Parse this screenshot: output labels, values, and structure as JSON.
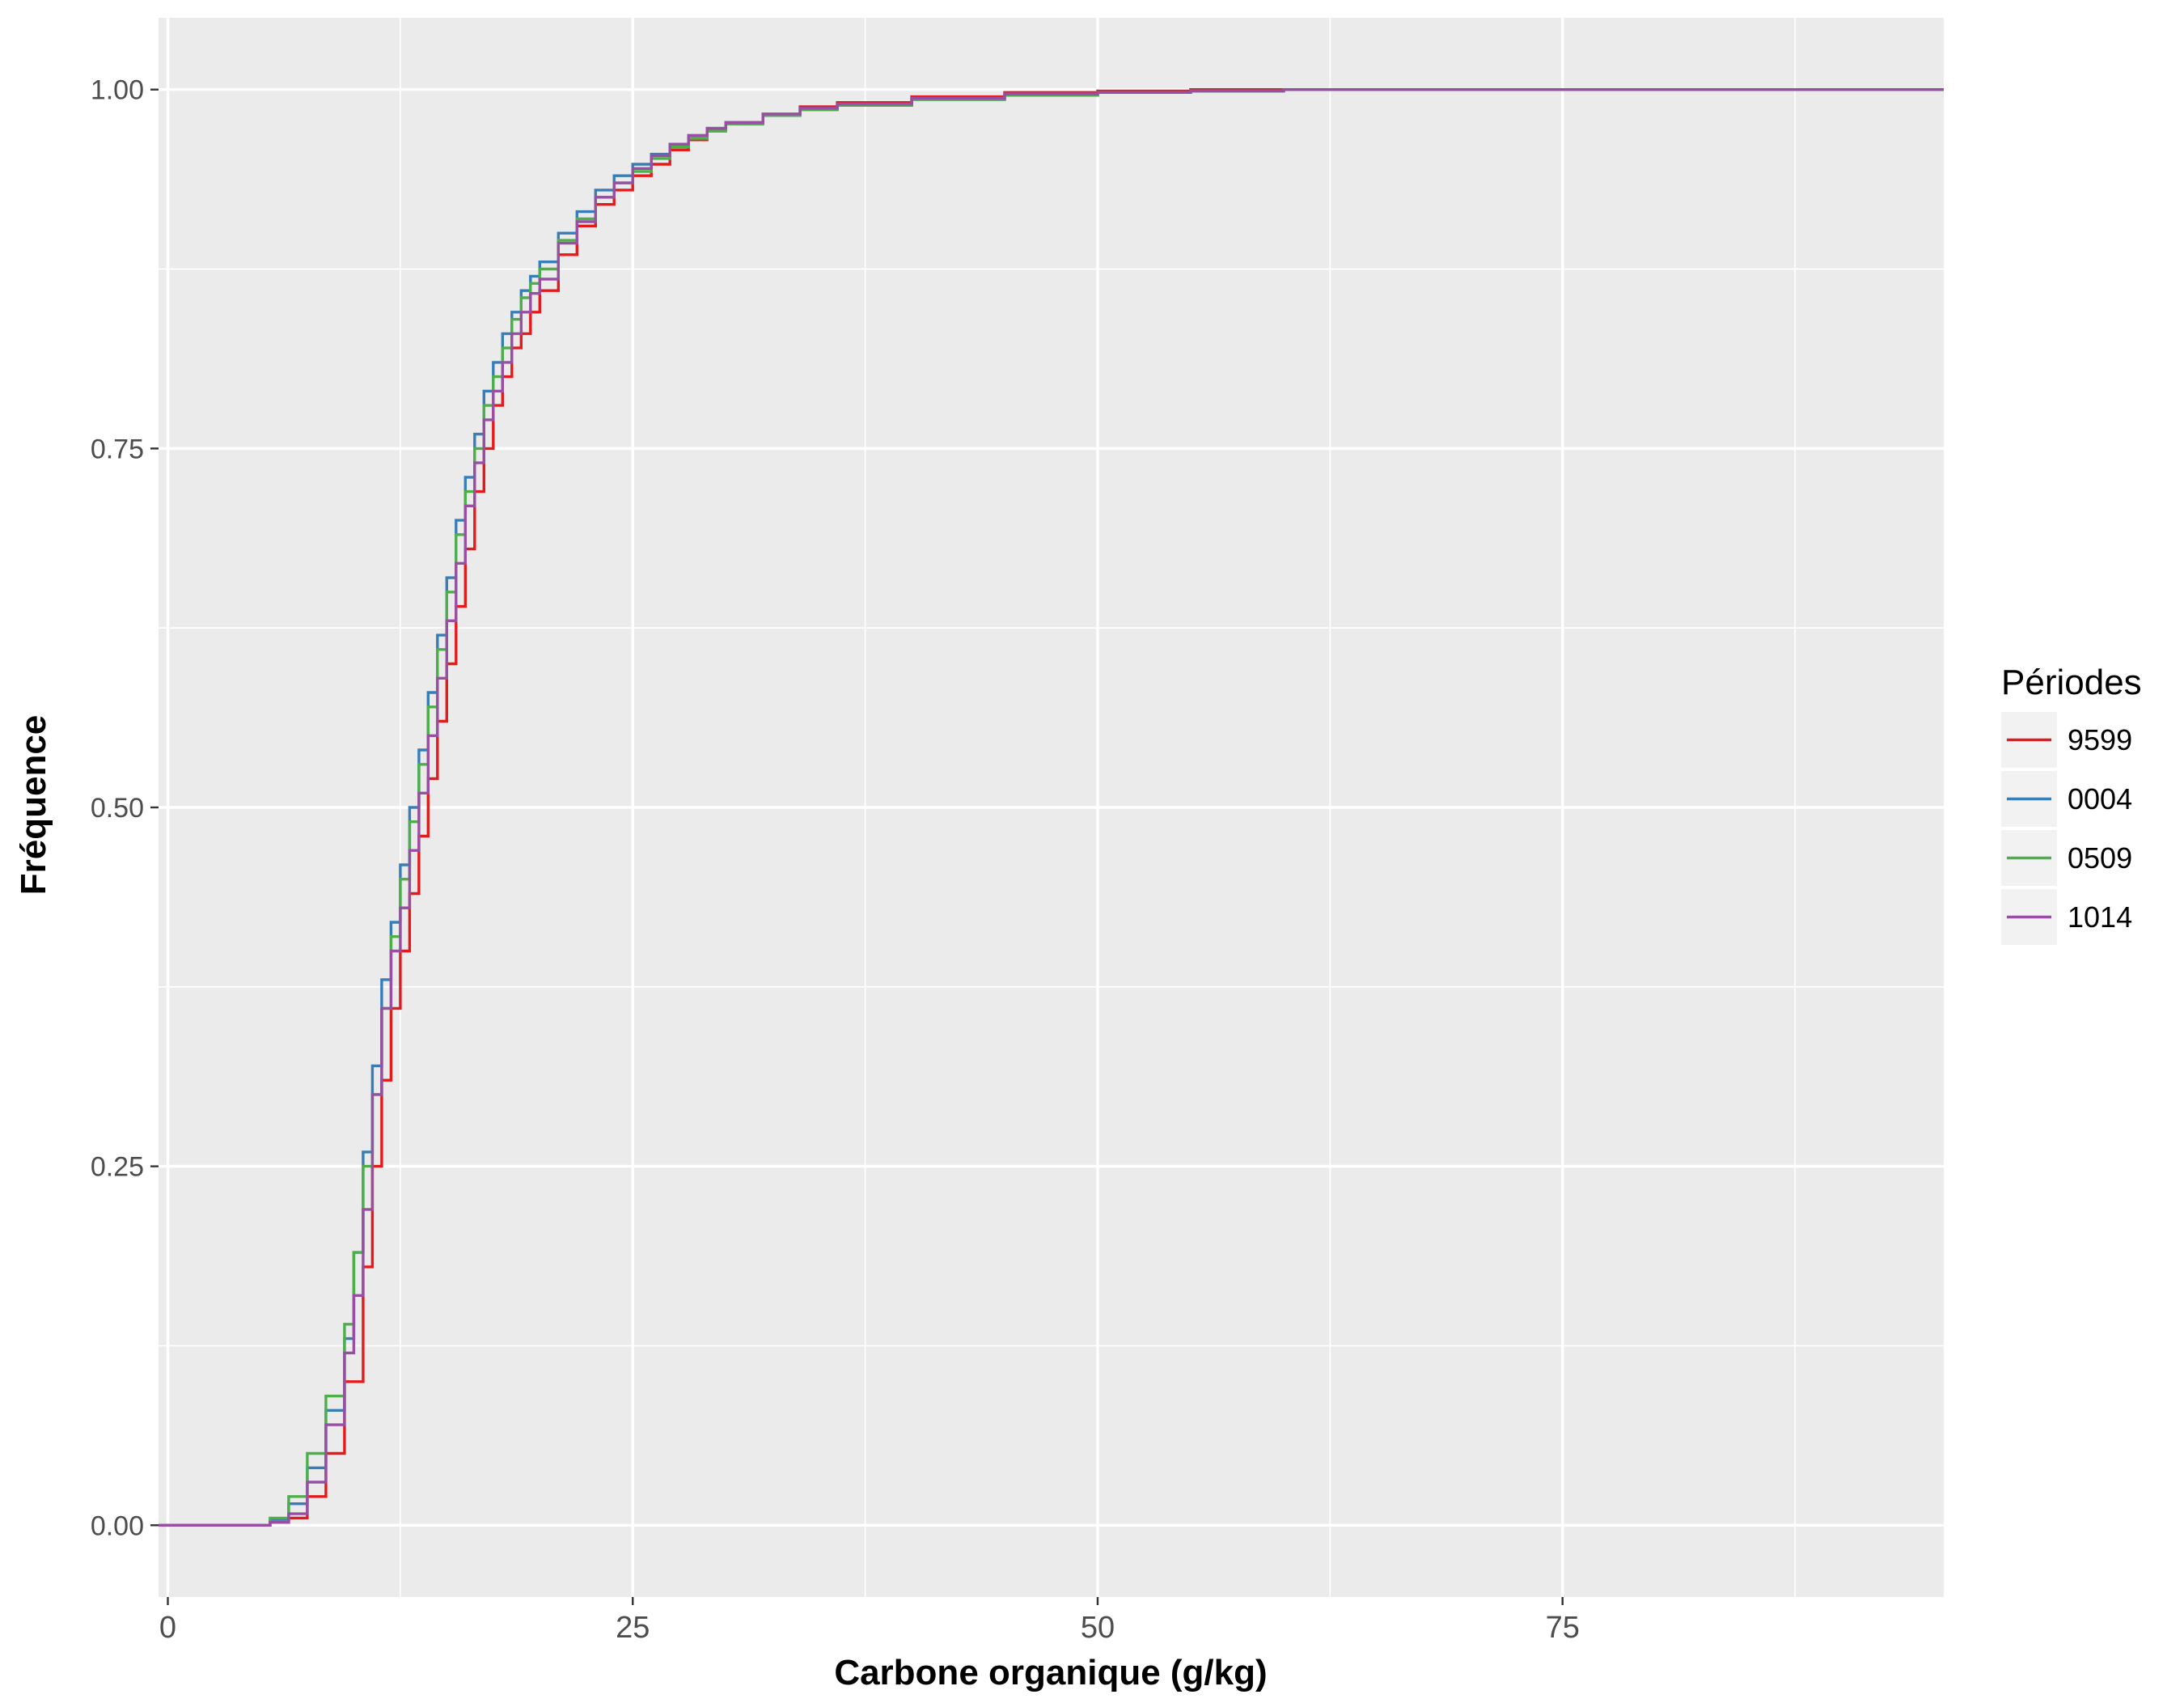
{
  "chart_data": {
    "type": "line",
    "step": true,
    "xlabel": "Carbone organique (g/kg)",
    "ylabel": "Fréquence",
    "xlim": [
      -0.5,
      95.5
    ],
    "ylim": [
      -0.05,
      1.05
    ],
    "x_ticks": [
      0,
      25,
      50,
      75
    ],
    "x_tick_labels": [
      "0",
      "25",
      "50",
      "75"
    ],
    "y_ticks": [
      0,
      0.25,
      0.5,
      0.75,
      1.0
    ],
    "y_tick_labels": [
      "0.00",
      "0.25",
      "0.50",
      "0.75",
      "1.00"
    ],
    "grid": true,
    "legend": {
      "title": "Périodes",
      "position": "right"
    },
    "series": [
      {
        "name": "9599",
        "color": "#e41a1c",
        "x": [
          -0.5,
          5.5,
          6.5,
          7.5,
          8.5,
          9.5,
          10.5,
          11.0,
          11.5,
          12.0,
          12.5,
          13.0,
          13.5,
          14.0,
          14.5,
          15.0,
          15.5,
          16.0,
          16.5,
          17.0,
          17.5,
          18.0,
          18.5,
          19.0,
          19.5,
          20.0,
          21.0,
          22.0,
          23.0,
          24.0,
          25.0,
          26.0,
          27.0,
          28.0,
          29.0,
          30.0,
          32.0,
          34.0,
          36.0,
          40.0,
          45.0,
          50.0,
          55.0,
          60.0,
          95.5
        ],
        "y": [
          0,
          0.002,
          0.005,
          0.02,
          0.05,
          0.1,
          0.18,
          0.25,
          0.31,
          0.36,
          0.4,
          0.44,
          0.48,
          0.52,
          0.56,
          0.6,
          0.64,
          0.68,
          0.72,
          0.75,
          0.78,
          0.8,
          0.82,
          0.83,
          0.845,
          0.86,
          0.885,
          0.905,
          0.92,
          0.93,
          0.94,
          0.948,
          0.958,
          0.965,
          0.972,
          0.977,
          0.983,
          0.988,
          0.991,
          0.995,
          0.998,
          0.999,
          1.0,
          1.0,
          1.0
        ]
      },
      {
        "name": "0004",
        "color": "#377eb8",
        "x": [
          -0.5,
          5.5,
          6.5,
          7.5,
          8.5,
          9.5,
          10.0,
          10.5,
          11.0,
          11.5,
          12.0,
          12.5,
          13.0,
          13.5,
          14.0,
          14.5,
          15.0,
          15.5,
          16.0,
          16.5,
          17.0,
          17.5,
          18.0,
          18.5,
          19.0,
          19.5,
          20.0,
          21.0,
          22.0,
          23.0,
          24.0,
          25.0,
          26.0,
          27.0,
          28.0,
          29.0,
          30.0,
          32.0,
          34.0,
          36.0,
          40.0,
          45.0,
          50.0,
          55.0,
          60.0,
          95.5
        ],
        "y": [
          0,
          0.004,
          0.015,
          0.04,
          0.08,
          0.13,
          0.19,
          0.26,
          0.32,
          0.38,
          0.42,
          0.46,
          0.5,
          0.54,
          0.58,
          0.62,
          0.66,
          0.7,
          0.73,
          0.76,
          0.79,
          0.81,
          0.83,
          0.845,
          0.86,
          0.87,
          0.88,
          0.9,
          0.915,
          0.93,
          0.94,
          0.948,
          0.955,
          0.962,
          0.968,
          0.973,
          0.977,
          0.982,
          0.986,
          0.989,
          0.993,
          0.996,
          0.998,
          0.999,
          1.0,
          1.0
        ]
      },
      {
        "name": "0509",
        "color": "#4daf4a",
        "x": [
          -0.5,
          5.5,
          6.5,
          7.5,
          8.5,
          9.5,
          10.0,
          10.5,
          11.0,
          11.5,
          12.0,
          12.5,
          13.0,
          13.5,
          14.0,
          14.5,
          15.0,
          15.5,
          16.0,
          16.5,
          17.0,
          17.5,
          18.0,
          18.5,
          19.0,
          19.5,
          20.0,
          21.0,
          22.0,
          23.0,
          24.0,
          25.0,
          26.0,
          27.0,
          28.0,
          29.0,
          30.0,
          32.0,
          34.0,
          36.0,
          40.0,
          45.0,
          50.0,
          55.0,
          60.0,
          95.5
        ],
        "y": [
          0,
          0.005,
          0.02,
          0.05,
          0.09,
          0.14,
          0.19,
          0.25,
          0.3,
          0.36,
          0.41,
          0.45,
          0.49,
          0.53,
          0.57,
          0.61,
          0.65,
          0.69,
          0.72,
          0.75,
          0.78,
          0.8,
          0.82,
          0.84,
          0.855,
          0.865,
          0.875,
          0.895,
          0.91,
          0.925,
          0.935,
          0.943,
          0.952,
          0.96,
          0.966,
          0.971,
          0.976,
          0.982,
          0.986,
          0.989,
          0.993,
          0.996,
          0.998,
          0.999,
          1.0,
          1.0
        ]
      },
      {
        "name": "1014",
        "color": "#984ea3",
        "x": [
          -0.5,
          5.5,
          6.5,
          7.5,
          8.5,
          9.5,
          10.0,
          10.5,
          11.0,
          11.5,
          12.0,
          12.5,
          13.0,
          13.5,
          14.0,
          14.5,
          15.0,
          15.5,
          16.0,
          16.5,
          17.0,
          17.5,
          18.0,
          18.5,
          19.0,
          19.5,
          20.0,
          21.0,
          22.0,
          23.0,
          24.0,
          25.0,
          26.0,
          27.0,
          28.0,
          29.0,
          30.0,
          32.0,
          34.0,
          36.0,
          40.0,
          45.0,
          50.0,
          55.0,
          60.0,
          95.5
        ],
        "y": [
          0,
          0.002,
          0.008,
          0.03,
          0.07,
          0.12,
          0.16,
          0.22,
          0.3,
          0.36,
          0.4,
          0.43,
          0.47,
          0.51,
          0.55,
          0.59,
          0.63,
          0.67,
          0.71,
          0.74,
          0.77,
          0.79,
          0.81,
          0.83,
          0.845,
          0.858,
          0.868,
          0.893,
          0.908,
          0.925,
          0.935,
          0.945,
          0.954,
          0.962,
          0.968,
          0.973,
          0.977,
          0.983,
          0.987,
          0.99,
          0.994,
          0.997,
          0.998,
          0.999,
          1.0,
          1.0
        ]
      }
    ]
  }
}
